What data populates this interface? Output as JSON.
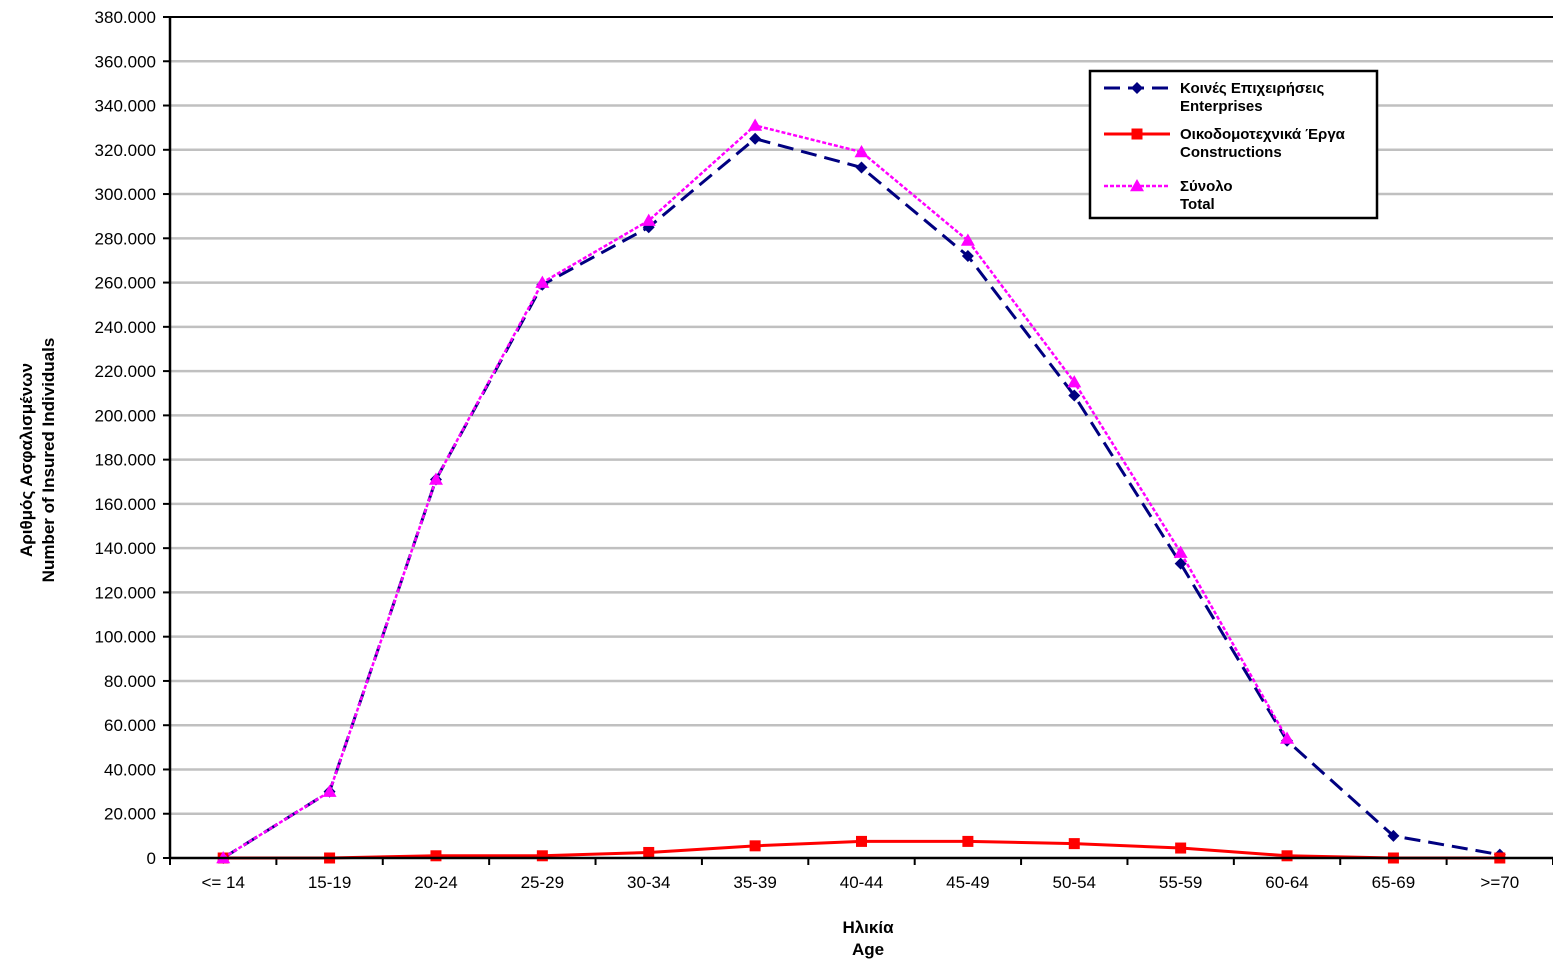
{
  "chart_data": {
    "type": "line",
    "categories": [
      "<= 14",
      "15-19",
      "20-24",
      "25-29",
      "30-34",
      "35-39",
      "40-44",
      "45-49",
      "50-54",
      "55-59",
      "60-64",
      "65-69",
      ">=70"
    ],
    "series": [
      {
        "name_line1": "Κοινές Επιχειρήσεις",
        "name_line2": "Enterprises",
        "color": "#000080",
        "marker": "diamond",
        "dash": "dashed",
        "values": [
          0,
          30000,
          171000,
          259000,
          285000,
          325000,
          312000,
          272000,
          209000,
          133000,
          53000,
          10000,
          1500
        ]
      },
      {
        "name_line1": "Οικοδομοτεχνικά Έργα",
        "name_line2": "Constructions",
        "color": "#ff0000",
        "marker": "square",
        "dash": "solid",
        "values": [
          0,
          0,
          1000,
          1000,
          2500,
          5500,
          7500,
          7500,
          6500,
          4500,
          1000,
          0,
          0
        ]
      },
      {
        "name_line1": "Σύνολο",
        "name_line2": "Total",
        "color": "#ff00ff",
        "marker": "triangle",
        "dash": "dotted",
        "values": [
          0,
          30000,
          171000,
          260000,
          288000,
          331000,
          319000,
          279000,
          215000,
          138000,
          54000,
          null,
          null
        ]
      }
    ],
    "y_ticks": [
      "0",
      "20.000",
      "40.000",
      "60.000",
      "80.000",
      "100.000",
      "120.000",
      "140.000",
      "160.000",
      "180.000",
      "200.000",
      "220.000",
      "240.000",
      "260.000",
      "280.000",
      "300.000",
      "320.000",
      "340.000",
      "360.000",
      "380.000"
    ],
    "ylim": [
      0,
      380000
    ],
    "ylabel_line1": "Αριθμός Ασφαλισμένων",
    "ylabel_line2": "Number of Insured Individuals",
    "xlabel_line1": "Ηλικία",
    "xlabel_line2": "Age",
    "grid": true,
    "legend_position": "top-right"
  }
}
